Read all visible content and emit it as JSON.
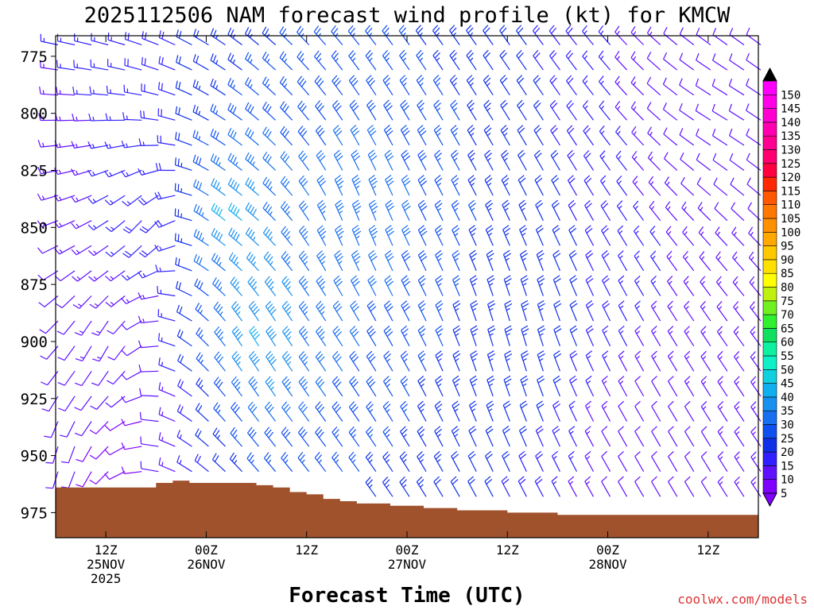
{
  "chart_data": {
    "type": "wind-barb time-height profile",
    "title": "2025112506 NAM forecast wind profile (kt) for KMCW",
    "xlabel": "Forecast Time (UTC)",
    "ylabel": "",
    "credit": "coolwx.com/models",
    "units": "kt",
    "x_range_hours": [
      0,
      84
    ],
    "y_range_hpa": [
      766,
      986
    ],
    "y_ticks": [
      775,
      800,
      825,
      850,
      875,
      900,
      925,
      950,
      975
    ],
    "x_ticks": [
      {
        "hour": 6,
        "line1": "12Z",
        "line2": "25NOV",
        "line3": "2025"
      },
      {
        "hour": 18,
        "line1": "00Z",
        "line2": "26NOV",
        "line3": ""
      },
      {
        "hour": 30,
        "line1": "12Z",
        "line2": "",
        "line3": ""
      },
      {
        "hour": 42,
        "line1": "00Z",
        "line2": "27NOV",
        "line3": ""
      },
      {
        "hour": 54,
        "line1": "12Z",
        "line2": "",
        "line3": ""
      },
      {
        "hour": 66,
        "line1": "00Z",
        "line2": "28NOV",
        "line3": ""
      },
      {
        "hour": 78,
        "line1": "12Z",
        "line2": "",
        "line3": ""
      }
    ],
    "colorbar": {
      "levels": [
        5,
        10,
        15,
        20,
        25,
        30,
        35,
        40,
        45,
        50,
        55,
        60,
        65,
        70,
        75,
        80,
        85,
        90,
        95,
        100,
        105,
        110,
        115,
        120,
        125,
        130,
        135,
        140,
        145,
        150
      ],
      "colors": [
        "#7f00ff",
        "#5f10ff",
        "#3020ff",
        "#1030e8",
        "#1050f0",
        "#1870f0",
        "#1890f0",
        "#10b0f0",
        "#10d0e0",
        "#10f0c8",
        "#10f0a0",
        "#10e060",
        "#30f030",
        "#70f020",
        "#c0f010",
        "#ffff00",
        "#ffe000",
        "#ffc800",
        "#ffa800",
        "#ff9000",
        "#ff7800",
        "#ff5800",
        "#ff2800",
        "#ff0040",
        "#ff0070",
        "#ff0090",
        "#ff00b0",
        "#ff00d0",
        "#ff00e8",
        "#ff00ff"
      ]
    },
    "series": [
      {
        "name": "",
        "values": [
          {
            "p": 950,
            "h": 0,
            "dir_deg": 190,
            "speed_kt": 12
          },
          {
            "p": 900,
            "h": 6,
            "dir_deg": 200,
            "speed_kt": 15
          },
          {
            "p": 850,
            "h": 12,
            "dir_deg": 205,
            "speed_kt": 25
          },
          {
            "p": 850,
            "h": 20,
            "dir_deg": 310,
            "speed_kt": 50
          },
          {
            "p": 900,
            "h": 24,
            "dir_deg": 330,
            "speed_kt": 45
          },
          {
            "p": 850,
            "h": 36,
            "dir_deg": 340,
            "speed_kt": 35
          },
          {
            "p": 900,
            "h": 54,
            "dir_deg": 345,
            "speed_kt": 25
          },
          {
            "p": 950,
            "h": 70,
            "dir_deg": 330,
            "speed_kt": 10
          },
          {
            "p": 800,
            "h": 80,
            "dir_deg": 300,
            "speed_kt": 10
          }
        ]
      }
    ]
  }
}
